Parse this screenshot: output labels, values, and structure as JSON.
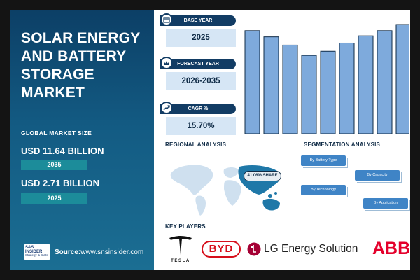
{
  "title_lines": [
    "SOLAR ENERGY",
    "AND BATTERY",
    "STORAGE",
    "MARKET"
  ],
  "global_market_size_label": "GLOBAL MARKET SIZE",
  "market_values": [
    {
      "value": "USD 11.64 BILLION",
      "year": "2035"
    },
    {
      "value": "USD 2.71 BILLION",
      "year": "2025"
    }
  ],
  "source": {
    "label": "Source:",
    "url": "www.snsinsider.com",
    "logo_top": "S&S INSIDER",
    "logo_bottom": "Strategy & Stats"
  },
  "cards": [
    {
      "label": "BASE YEAR",
      "value": "2025",
      "icon": "calendar-icon"
    },
    {
      "label": "FORECAST YEAR",
      "value": "2026-2035",
      "icon": "crown-icon"
    },
    {
      "label": "CAGR %",
      "value": "15.70%",
      "icon": "growth-icon"
    }
  ],
  "chart_data": {
    "type": "bar",
    "values": [
      100,
      94,
      86,
      76,
      80,
      88,
      95,
      100,
      106
    ],
    "color": "#7eaadc",
    "axes": "none"
  },
  "regional": {
    "title": "REGIONAL ANALYSIS",
    "share_label": "41.06% SHARE"
  },
  "segmentation": {
    "title": "SEGMENTATION ANALYSIS",
    "items": [
      "By Battery Type",
      "By Capacity",
      "By Technology",
      "By Application"
    ]
  },
  "key_players": {
    "title": "KEY PLAYERS",
    "logos": [
      {
        "name": "tesla",
        "text": "TESLA"
      },
      {
        "name": "byd",
        "text": "BYD"
      },
      {
        "name": "lg",
        "text": "LG Energy Solution"
      },
      {
        "name": "abb",
        "text": "ABB"
      }
    ]
  },
  "colors": {
    "panel": "#135b83",
    "navy": "#123c64",
    "accent": "#1c8c9a",
    "bar": "#7eaadc",
    "lg_red": "#a50034",
    "abb_red": "#e4002b"
  }
}
